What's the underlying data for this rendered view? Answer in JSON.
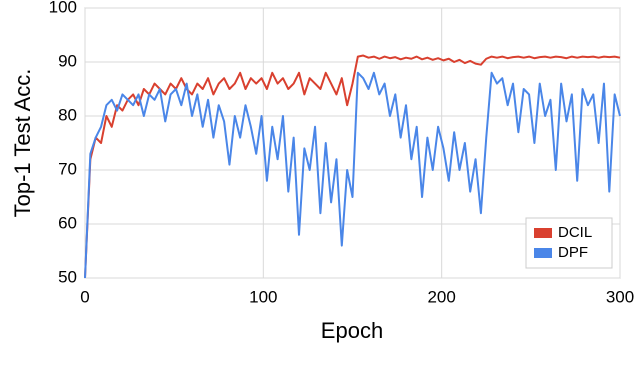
{
  "chart_data": {
    "type": "line",
    "xlabel": "Epoch",
    "ylabel": "Top-1 Test Acc.",
    "x": [
      0,
      3,
      6,
      9,
      12,
      15,
      18,
      21,
      24,
      27,
      30,
      33,
      36,
      39,
      42,
      45,
      48,
      51,
      54,
      57,
      60,
      63,
      66,
      69,
      72,
      75,
      78,
      81,
      84,
      87,
      90,
      93,
      96,
      99,
      102,
      105,
      108,
      111,
      114,
      117,
      120,
      123,
      126,
      129,
      132,
      135,
      138,
      141,
      144,
      147,
      150,
      153,
      156,
      159,
      162,
      165,
      168,
      171,
      174,
      177,
      180,
      183,
      186,
      189,
      192,
      195,
      198,
      201,
      204,
      207,
      210,
      213,
      216,
      219,
      222,
      225,
      228,
      231,
      234,
      237,
      240,
      243,
      246,
      249,
      252,
      255,
      258,
      261,
      264,
      267,
      270,
      273,
      276,
      279,
      282,
      285,
      288,
      291,
      294,
      297,
      300
    ],
    "series": [
      {
        "name": "DCIL",
        "color": "#d9402f",
        "values": [
          50,
          72,
          76,
          75,
          80,
          78,
          82,
          81,
          83,
          84,
          82,
          85,
          84,
          86,
          85,
          84,
          86,
          85,
          87,
          85,
          84,
          86,
          85,
          87,
          84,
          86,
          87,
          85,
          86,
          88,
          85,
          87,
          86,
          87,
          85,
          88,
          86,
          87,
          85,
          86,
          88,
          84,
          87,
          86,
          85,
          88,
          86,
          84,
          87,
          82,
          86,
          91,
          91.2,
          90.8,
          91,
          90.6,
          91,
          90.7,
          90.9,
          90.5,
          90.8,
          90.6,
          91,
          90.5,
          90.8,
          90.4,
          90.7,
          90.3,
          90.6,
          90,
          90.4,
          89.8,
          90.2,
          89.7,
          89.5,
          90.6,
          91,
          90.8,
          91,
          90.7,
          90.9,
          91,
          90.8,
          91,
          90.7,
          90.9,
          91,
          90.8,
          91,
          90.9,
          90.7,
          91,
          90.8,
          91,
          90.9,
          91,
          90.8,
          91,
          90.9,
          91,
          90.8
        ]
      },
      {
        "name": "DPF",
        "color": "#4a86e8",
        "values": [
          50,
          73,
          76,
          78,
          82,
          83,
          81,
          84,
          83,
          82,
          84,
          80,
          84,
          83,
          85,
          79,
          84,
          85,
          82,
          86,
          80,
          84,
          78,
          83,
          76,
          82,
          79,
          71,
          80,
          76,
          82,
          78,
          73,
          80,
          68,
          78,
          72,
          80,
          66,
          76,
          58,
          74,
          70,
          78,
          62,
          75,
          64,
          72,
          56,
          70,
          65,
          88,
          87,
          85,
          88,
          84,
          86,
          80,
          84,
          76,
          82,
          72,
          78,
          65,
          76,
          70,
          78,
          74,
          68,
          77,
          70,
          75,
          66,
          72,
          62,
          76,
          88,
          86,
          87,
          82,
          86,
          77,
          85,
          84,
          75,
          86,
          80,
          83,
          70,
          86,
          79,
          84,
          68,
          85,
          82,
          84,
          75,
          86,
          66,
          84,
          80
        ]
      }
    ],
    "xlim": [
      0,
      300
    ],
    "xticks": [
      0,
      100,
      200,
      300
    ],
    "ylim": [
      50,
      100
    ],
    "yticks": [
      50,
      60,
      70,
      80,
      90,
      100
    ],
    "grid": true,
    "legend": "lower right"
  }
}
